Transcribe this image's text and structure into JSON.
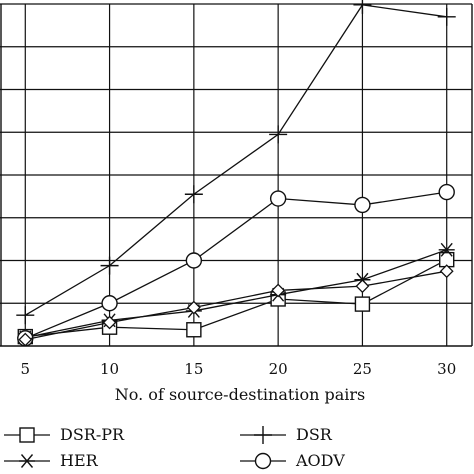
{
  "chart_data": {
    "type": "line",
    "title": "",
    "xlabel": "No. of source-destination pairs",
    "ylabel": "",
    "x": [
      5,
      10,
      15,
      20,
      25,
      30
    ],
    "xlim": [
      3.5,
      31.5
    ],
    "ylim": [
      0,
      8
    ],
    "grid": true,
    "legend_placement": "bottom",
    "series": [
      {
        "name": "DSR-PR",
        "marker": "square",
        "values": [
          0.22,
          0.44,
          0.38,
          1.1,
          0.98,
          2.02
        ]
      },
      {
        "name": "DSR",
        "marker": "plus",
        "values": [
          0.72,
          1.88,
          3.55,
          4.95,
          7.98,
          7.7
        ]
      },
      {
        "name": "HER",
        "marker": "asterisk",
        "values": [
          0.2,
          0.6,
          0.82,
          1.2,
          1.55,
          2.25
        ]
      },
      {
        "name": "AODV",
        "marker": "circle",
        "values": [
          0.18,
          1.0,
          2.0,
          3.45,
          3.3,
          3.6
        ]
      },
      {
        "name": "",
        "marker": "diamond",
        "values": [
          0.15,
          0.55,
          0.9,
          1.3,
          1.4,
          1.75
        ]
      }
    ],
    "legend": [
      {
        "label": "DSR-PR",
        "marker": "square"
      },
      {
        "label": "DSR",
        "marker": "plus"
      },
      {
        "label": "HER",
        "marker": "asterisk"
      },
      {
        "label": "AODV",
        "marker": "circle"
      }
    ]
  }
}
